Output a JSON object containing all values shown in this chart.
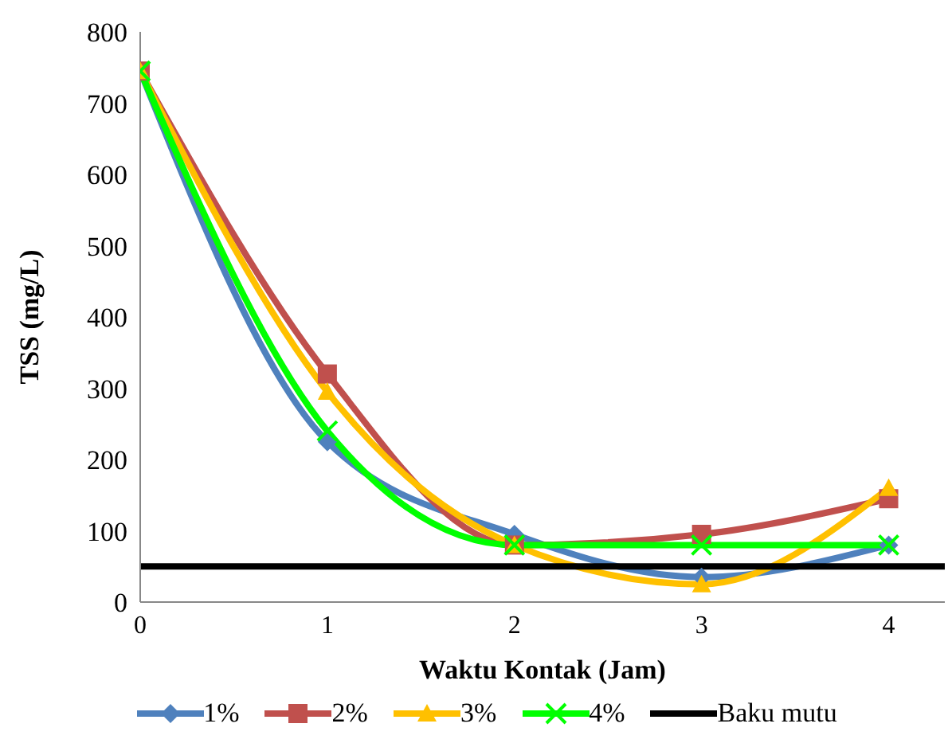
{
  "chart_data": {
    "type": "line",
    "xlabel": "Waktu Kontak (Jam)",
    "ylabel": "TSS (mg/L)",
    "x": [
      0,
      1,
      2,
      3,
      4
    ],
    "xlim": [
      0,
      4.3
    ],
    "xticks": [
      0,
      1,
      2,
      3,
      4
    ],
    "ylim": [
      0,
      800
    ],
    "yticks": [
      0,
      100,
      200,
      300,
      400,
      500,
      600,
      700,
      800
    ],
    "grid": false,
    "legend": "bottom",
    "series": [
      {
        "name": "1%",
        "color": "#4f81bd",
        "marker": "diamond",
        "values": [
          745,
          225,
          95,
          35,
          80
        ]
      },
      {
        "name": "2%",
        "color": "#c0504d",
        "marker": "square",
        "values": [
          745,
          320,
          80,
          95,
          145
        ]
      },
      {
        "name": "3%",
        "color": "#ffc000",
        "marker": "triangle",
        "values": [
          745,
          295,
          80,
          25,
          160
        ]
      },
      {
        "name": "4%",
        "color": "#00ff00",
        "marker": "cross",
        "values": [
          745,
          240,
          80,
          80,
          80
        ]
      },
      {
        "name": "Baku mutu",
        "color": "#000000",
        "marker": "none",
        "x": [
          0,
          4.3
        ],
        "values": [
          50,
          50
        ]
      }
    ]
  }
}
